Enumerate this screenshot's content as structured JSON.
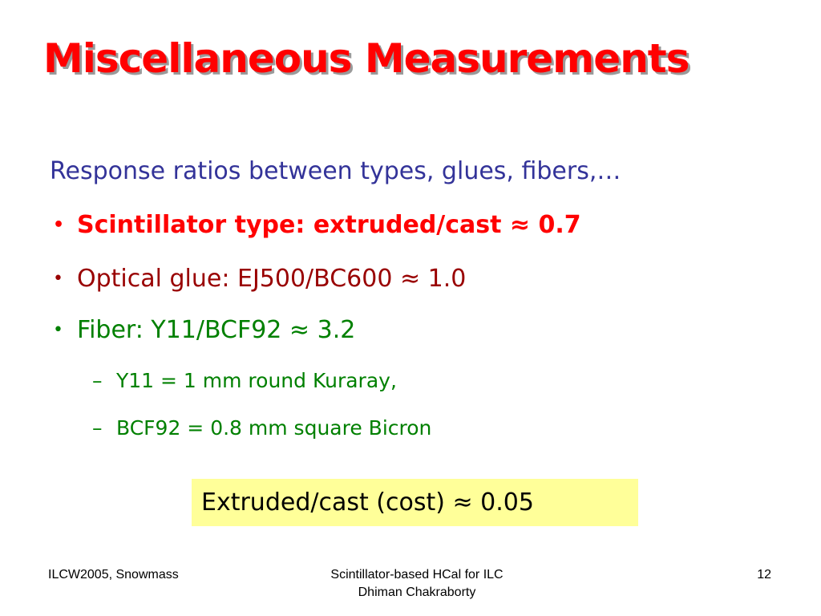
{
  "slide": {
    "title": "Miscellaneous Measurements",
    "intro": "Response ratios between types, glues, fibers,…",
    "bullets": [
      {
        "marker": "•",
        "text": "Scintillator type: extruded/cast ≈ 0.7",
        "color": "#ff0000"
      },
      {
        "marker": "•",
        "text": "Optical glue: EJ500/BC600 ≈ 1.0",
        "color": "#990000"
      },
      {
        "marker": "•",
        "text": "Fiber: Y11/BCF92 ≈ 3.2",
        "color": "#008000"
      }
    ],
    "sub_bullets": [
      {
        "marker": "–",
        "text": "Y11 = 1 mm round Kuraray,"
      },
      {
        "marker": "–",
        "text": "BCF92 = 0.8 mm square Bicron"
      }
    ],
    "highlight_box": {
      "text": "Extruded/cast (cost) ≈ 0.05",
      "background": "#ffff99"
    }
  },
  "footer": {
    "left": "ILCW2005, Snowmass",
    "center_line1": "Scintillator-based HCal for ILC",
    "center_line2": "Dhiman Chakraborty",
    "page_number": "12"
  },
  "colors": {
    "title": "#ff0000",
    "intro": "#333399"
  }
}
